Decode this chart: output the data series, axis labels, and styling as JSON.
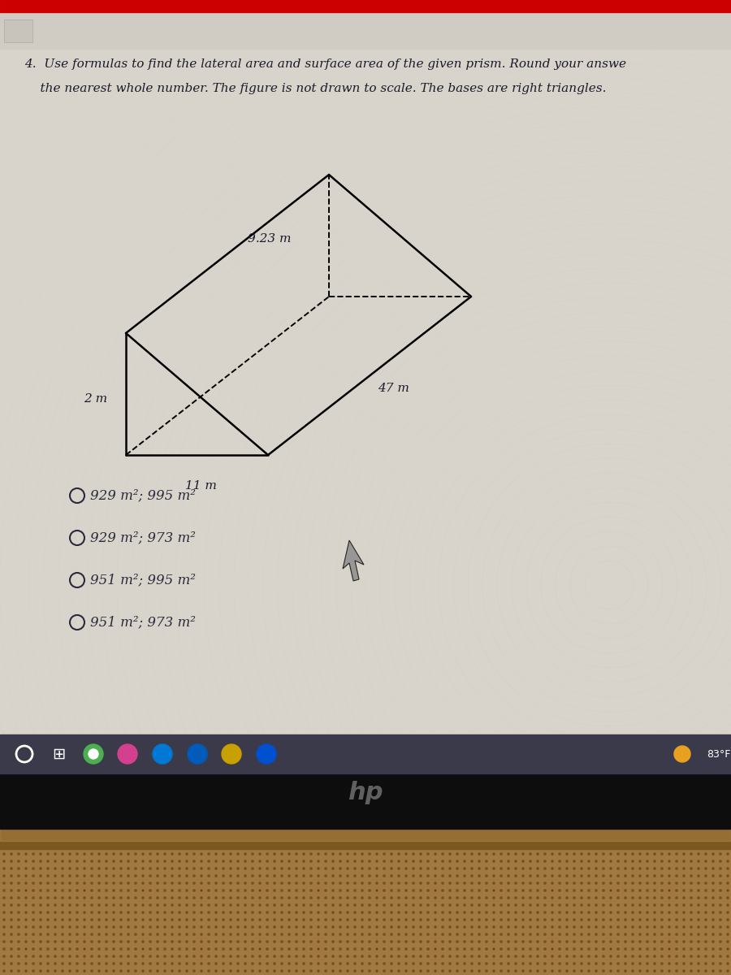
{
  "title_line1": "4.  Use formulas to find the lateral area and surface area of the given prism. Round your answe",
  "title_line2": "    the nearest whole number. The figure is not drawn to scale. The bases are right triangles.",
  "dim_top": "9.23 m",
  "dim_side": "47 m",
  "dim_left": "2 m",
  "dim_bottom": "11 m",
  "choices": [
    "929 m²; 995 m²",
    "929 m²; 973 m²",
    "951 m²; 995 m²",
    "951 m²; 973 m²"
  ],
  "outer_bg": "#b8924a",
  "bezel_color": "#1a1200",
  "taskbar_color": "#3a3a4a",
  "screen_bg_top": "#dedad2",
  "screen_bg_wave": "#c8e8d8",
  "text_color": "#1a1a2a",
  "choice_color": "#2a2a3a",
  "temp_text": "83°F",
  "red_strip": "#cc0000",
  "speaker_dot_color": "#6a4a20"
}
